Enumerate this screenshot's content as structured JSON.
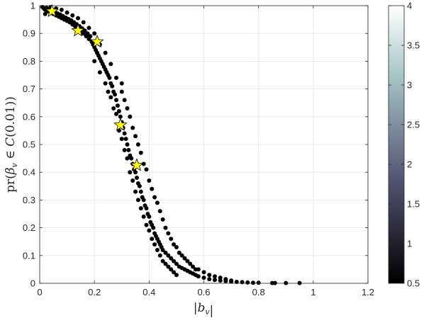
{
  "chart_data": {
    "type": "scatter",
    "xlabel": "|b_v|",
    "ylabel": "pr(β_v ∈ C(0.01))",
    "xlim": [
      0,
      1.2
    ],
    "ylim": [
      0,
      1
    ],
    "xticks": [
      "0",
      "0.2",
      "0.4",
      "0.6",
      "0.8",
      "1",
      "1.2"
    ],
    "yticks": [
      "0",
      "0.1",
      "0.2",
      "0.3",
      "0.4",
      "0.5",
      "0.6",
      "0.7",
      "0.8",
      "0.9",
      "1"
    ],
    "grid": true,
    "colorbar": {
      "range": [
        0.5,
        4
      ],
      "ticks": [
        "0.5",
        "1",
        "1.5",
        "2",
        "2.5",
        "3",
        "3.5",
        "4"
      ],
      "colormap": "bone",
      "placement": "right"
    },
    "series": [
      {
        "marker": "circle",
        "color": "#000000",
        "points": [
          [
            0.01,
            0.995
          ],
          [
            0.015,
            0.99
          ],
          [
            0.02,
            0.985
          ],
          [
            0.025,
            0.992
          ],
          [
            0.03,
            0.98
          ],
          [
            0.035,
            0.988
          ],
          [
            0.04,
            0.975
          ],
          [
            0.045,
            0.983
          ],
          [
            0.05,
            0.97
          ],
          [
            0.055,
            0.978
          ],
          [
            0.06,
            0.965
          ],
          [
            0.065,
            0.972
          ],
          [
            0.07,
            0.96
          ],
          [
            0.075,
            0.968
          ],
          [
            0.08,
            0.955
          ],
          [
            0.085,
            0.962
          ],
          [
            0.09,
            0.95
          ],
          [
            0.095,
            0.957
          ],
          [
            0.1,
            0.945
          ],
          [
            0.105,
            0.952
          ],
          [
            0.11,
            0.94
          ],
          [
            0.115,
            0.947
          ],
          [
            0.12,
            0.932
          ],
          [
            0.125,
            0.94
          ],
          [
            0.13,
            0.925
          ],
          [
            0.135,
            0.933
          ],
          [
            0.14,
            0.918
          ],
          [
            0.145,
            0.926
          ],
          [
            0.15,
            0.91
          ],
          [
            0.155,
            0.918
          ],
          [
            0.16,
            0.9
          ],
          [
            0.165,
            0.91
          ],
          [
            0.17,
            0.89
          ],
          [
            0.175,
            0.9
          ],
          [
            0.18,
            0.88
          ],
          [
            0.185,
            0.89
          ],
          [
            0.19,
            0.87
          ],
          [
            0.195,
            0.86
          ],
          [
            0.2,
            0.85
          ],
          [
            0.205,
            0.84
          ],
          [
            0.21,
            0.83
          ],
          [
            0.215,
            0.82
          ],
          [
            0.22,
            0.81
          ],
          [
            0.225,
            0.8
          ],
          [
            0.23,
            0.79
          ],
          [
            0.235,
            0.78
          ],
          [
            0.24,
            0.77
          ],
          [
            0.245,
            0.76
          ],
          [
            0.25,
            0.75
          ],
          [
            0.255,
            0.74
          ],
          [
            0.26,
            0.72
          ],
          [
            0.265,
            0.71
          ],
          [
            0.27,
            0.69
          ],
          [
            0.275,
            0.68
          ],
          [
            0.28,
            0.66
          ],
          [
            0.285,
            0.64
          ],
          [
            0.29,
            0.62
          ],
          [
            0.295,
            0.6
          ],
          [
            0.3,
            0.58
          ],
          [
            0.305,
            0.56
          ],
          [
            0.31,
            0.54
          ],
          [
            0.315,
            0.52
          ],
          [
            0.32,
            0.5
          ],
          [
            0.325,
            0.48
          ],
          [
            0.33,
            0.46
          ],
          [
            0.335,
            0.45
          ],
          [
            0.34,
            0.43
          ],
          [
            0.345,
            0.41
          ],
          [
            0.35,
            0.4
          ],
          [
            0.355,
            0.38
          ],
          [
            0.36,
            0.36
          ],
          [
            0.365,
            0.35
          ],
          [
            0.37,
            0.33
          ],
          [
            0.375,
            0.31
          ],
          [
            0.38,
            0.3
          ],
          [
            0.385,
            0.28
          ],
          [
            0.39,
            0.27
          ],
          [
            0.395,
            0.25
          ],
          [
            0.4,
            0.24
          ],
          [
            0.405,
            0.22
          ],
          [
            0.41,
            0.21
          ],
          [
            0.415,
            0.2
          ],
          [
            0.42,
            0.18
          ],
          [
            0.425,
            0.17
          ],
          [
            0.43,
            0.16
          ],
          [
            0.435,
            0.15
          ],
          [
            0.44,
            0.14
          ],
          [
            0.445,
            0.13
          ],
          [
            0.45,
            0.12
          ],
          [
            0.46,
            0.11
          ],
          [
            0.47,
            0.1
          ],
          [
            0.48,
            0.09
          ],
          [
            0.49,
            0.08
          ],
          [
            0.5,
            0.07
          ],
          [
            0.51,
            0.06
          ],
          [
            0.52,
            0.055
          ],
          [
            0.53,
            0.05
          ],
          [
            0.54,
            0.045
          ],
          [
            0.55,
            0.04
          ],
          [
            0.56,
            0.035
          ],
          [
            0.57,
            0.03
          ],
          [
            0.58,
            0.025
          ],
          [
            0.6,
            0.02
          ],
          [
            0.62,
            0.015
          ],
          [
            0.64,
            0.012
          ],
          [
            0.66,
            0.01
          ],
          [
            0.68,
            0.008
          ],
          [
            0.7,
            0.006
          ],
          [
            0.72,
            0.005
          ],
          [
            0.74,
            0.004
          ],
          [
            0.76,
            0.003
          ],
          [
            0.78,
            0.002
          ],
          [
            0.8,
            0.002
          ],
          [
            0.85,
            0.001
          ],
          [
            0.86,
            0.001
          ],
          [
            0.9,
            0.001
          ],
          [
            0.95,
            0.001
          ],
          [
            0.02,
            0.97
          ],
          [
            0.04,
            0.995
          ],
          [
            0.06,
            0.99
          ],
          [
            0.08,
            0.985
          ],
          [
            0.1,
            0.975
          ],
          [
            0.12,
            0.965
          ],
          [
            0.14,
            0.955
          ],
          [
            0.16,
            0.94
          ],
          [
            0.18,
            0.92
          ],
          [
            0.2,
            0.9
          ],
          [
            0.2,
            0.8
          ],
          [
            0.22,
            0.86
          ],
          [
            0.22,
            0.76
          ],
          [
            0.24,
            0.83
          ],
          [
            0.24,
            0.72
          ],
          [
            0.26,
            0.79
          ],
          [
            0.26,
            0.67
          ],
          [
            0.28,
            0.74
          ],
          [
            0.28,
            0.61
          ],
          [
            0.3,
            0.69
          ],
          [
            0.3,
            0.52
          ],
          [
            0.32,
            0.63
          ],
          [
            0.32,
            0.45
          ],
          [
            0.34,
            0.56
          ],
          [
            0.34,
            0.37
          ],
          [
            0.36,
            0.5
          ],
          [
            0.36,
            0.3
          ],
          [
            0.38,
            0.43
          ],
          [
            0.38,
            0.24
          ],
          [
            0.4,
            0.37
          ],
          [
            0.4,
            0.19
          ],
          [
            0.42,
            0.31
          ],
          [
            0.42,
            0.14
          ],
          [
            0.44,
            0.26
          ],
          [
            0.44,
            0.1
          ],
          [
            0.46,
            0.2
          ],
          [
            0.46,
            0.07
          ],
          [
            0.48,
            0.16
          ],
          [
            0.48,
            0.05
          ],
          [
            0.5,
            0.13
          ],
          [
            0.5,
            0.03
          ],
          [
            0.52,
            0.1
          ],
          [
            0.54,
            0.08
          ],
          [
            0.56,
            0.06
          ],
          [
            0.58,
            0.05
          ],
          [
            0.6,
            0.04
          ],
          [
            0.62,
            0.03
          ],
          [
            0.64,
            0.025
          ],
          [
            0.66,
            0.02
          ],
          [
            0.68,
            0.015
          ],
          [
            0.7,
            0.01
          ],
          [
            0.3,
            0.72
          ],
          [
            0.31,
            0.66
          ],
          [
            0.33,
            0.6
          ],
          [
            0.35,
            0.53
          ],
          [
            0.37,
            0.47
          ],
          [
            0.39,
            0.41
          ],
          [
            0.41,
            0.34
          ],
          [
            0.43,
            0.29
          ],
          [
            0.45,
            0.23
          ],
          [
            0.47,
            0.18
          ],
          [
            0.49,
            0.14
          ],
          [
            0.51,
            0.11
          ],
          [
            0.53,
            0.09
          ],
          [
            0.55,
            0.07
          ],
          [
            0.57,
            0.05
          ],
          [
            0.25,
            0.69
          ],
          [
            0.27,
            0.63
          ],
          [
            0.29,
            0.55
          ],
          [
            0.31,
            0.48
          ],
          [
            0.33,
            0.4
          ],
          [
            0.35,
            0.33
          ],
          [
            0.37,
            0.27
          ],
          [
            0.39,
            0.21
          ],
          [
            0.41,
            0.16
          ],
          [
            0.43,
            0.12
          ],
          [
            0.45,
            0.08
          ],
          [
            0.47,
            0.06
          ],
          [
            0.49,
            0.04
          ]
        ]
      },
      {
        "marker": "star",
        "color": "#ffff00",
        "points": [
          [
            0.045,
            0.98
          ],
          [
            0.14,
            0.91
          ],
          [
            0.21,
            0.87
          ],
          [
            0.295,
            0.57
          ],
          [
            0.355,
            0.425
          ]
        ]
      }
    ]
  }
}
